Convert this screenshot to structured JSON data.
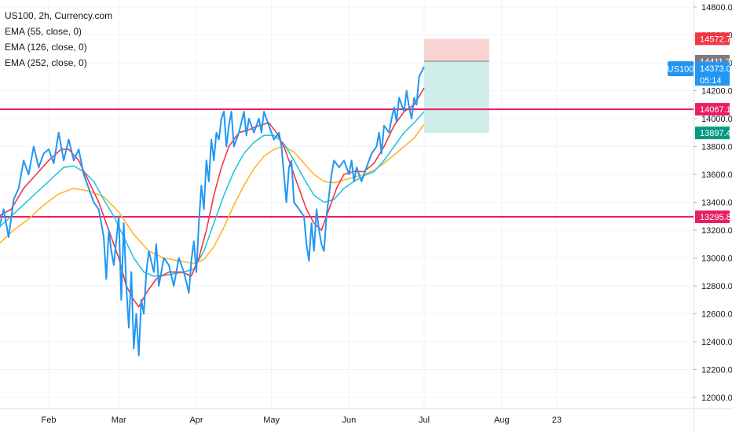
{
  "legend": {
    "title": "US100, 2h, Currency.com",
    "ema_55": "EMA (55, close, 0)",
    "ema_126": "EMA (126, close, 0)",
    "ema_252": "EMA (252, close, 0)"
  },
  "symbol_tag": "US100",
  "countdown": "05:14",
  "colors": {
    "price": "#2196f3",
    "ema_55": "#f23645",
    "ema_126": "#26c6da",
    "ema_252": "#ffb52e",
    "hline": "#e91e63",
    "stop_zone": "#f7c9c9",
    "target_zone": "#c3e8e4",
    "entry_tag": "#787b86",
    "stop_tag": "#f23645",
    "target_tag": "#089981",
    "last_tag": "#2196f3",
    "grid": "#f0f3fa"
  },
  "chart_data": {
    "type": "line",
    "ylim": [
      11900,
      14900
    ],
    "yticks": [
      12000,
      12200,
      12400,
      12600,
      12800,
      13000,
      13200,
      13400,
      13600,
      13800,
      14000,
      14200,
      14400,
      14600,
      14800
    ],
    "ytick_labels": [
      "12000.0",
      "12200.0",
      "12400.0",
      "12600.0",
      "12800.0",
      "13000.0",
      "13200.0",
      "13400.0",
      "13600.0",
      "13800.0",
      "14000.0",
      "14200.0",
      "14400.0",
      "14600.0",
      "14800.0"
    ],
    "x_domain": [
      -43,
      236
    ],
    "xticks": [
      {
        "label": "Feb",
        "day": 0
      },
      {
        "label": "Mar",
        "day": 28
      },
      {
        "label": "Apr",
        "day": 59
      },
      {
        "label": "May",
        "day": 89
      },
      {
        "label": "Jun",
        "day": 120
      },
      {
        "label": "Jul",
        "day": 150
      },
      {
        "label": "Aug",
        "day": 181
      },
      {
        "label": "23",
        "day": 203
      }
    ],
    "series": [
      {
        "key": "price",
        "points": [
          [
            -43,
            12950
          ],
          [
            -39,
            12900
          ],
          [
            -35,
            12980
          ],
          [
            -30,
            13230
          ],
          [
            -28,
            13480
          ],
          [
            -26,
            13380
          ],
          [
            -24,
            13450
          ],
          [
            -22,
            12900
          ],
          [
            -20,
            13200
          ],
          [
            -18,
            13350
          ],
          [
            -16,
            13150
          ],
          [
            -14,
            13420
          ],
          [
            -12,
            13500
          ],
          [
            -10,
            13700
          ],
          [
            -8,
            13600
          ],
          [
            -6,
            13800
          ],
          [
            -4,
            13650
          ],
          [
            -2,
            13750
          ],
          [
            0,
            13780
          ],
          [
            2,
            13680
          ],
          [
            4,
            13900
          ],
          [
            6,
            13700
          ],
          [
            8,
            13850
          ],
          [
            10,
            13700
          ],
          [
            12,
            13780
          ],
          [
            14,
            13600
          ],
          [
            16,
            13500
          ],
          [
            18,
            13400
          ],
          [
            20,
            13350
          ],
          [
            22,
            13150
          ],
          [
            23,
            12850
          ],
          [
            24,
            13200
          ],
          [
            25,
            13050
          ],
          [
            26,
            12950
          ],
          [
            28,
            13300
          ],
          [
            29,
            12700
          ],
          [
            30,
            13250
          ],
          [
            31,
            12800
          ],
          [
            32,
            12500
          ],
          [
            33,
            12900
          ],
          [
            34,
            12350
          ],
          [
            35,
            12600
          ],
          [
            36,
            12300
          ],
          [
            37,
            12700
          ],
          [
            38,
            12600
          ],
          [
            39,
            12900
          ],
          [
            40,
            13050
          ],
          [
            42,
            12900
          ],
          [
            43,
            13100
          ],
          [
            44,
            12800
          ],
          [
            46,
            13000
          ],
          [
            48,
            12950
          ],
          [
            50,
            12800
          ],
          [
            52,
            13000
          ],
          [
            54,
            12900
          ],
          [
            56,
            12750
          ],
          [
            57,
            12980
          ],
          [
            58,
            13120
          ],
          [
            59,
            12900
          ],
          [
            60,
            13250
          ],
          [
            61,
            13520
          ],
          [
            62,
            13350
          ],
          [
            63,
            13700
          ],
          [
            64,
            13550
          ],
          [
            65,
            13850
          ],
          [
            66,
            13700
          ],
          [
            67,
            13900
          ],
          [
            68,
            13850
          ],
          [
            69,
            14000
          ],
          [
            70,
            14050
          ],
          [
            71,
            13800
          ],
          [
            72,
            13950
          ],
          [
            73,
            14050
          ],
          [
            74,
            13800
          ],
          [
            76,
            13900
          ],
          [
            78,
            14050
          ],
          [
            79,
            13880
          ],
          [
            80,
            14000
          ],
          [
            82,
            13900
          ],
          [
            84,
            14000
          ],
          [
            85,
            13900
          ],
          [
            86,
            14050
          ],
          [
            88,
            13950
          ],
          [
            90,
            13850
          ],
          [
            92,
            13900
          ],
          [
            93,
            13800
          ],
          [
            94,
            13600
          ],
          [
            95,
            13400
          ],
          [
            96,
            13650
          ],
          [
            97,
            13700
          ],
          [
            98,
            13400
          ],
          [
            100,
            13350
          ],
          [
            102,
            13300
          ],
          [
            103,
            13100
          ],
          [
            104,
            12980
          ],
          [
            105,
            13250
          ],
          [
            106,
            13050
          ],
          [
            107,
            13350
          ],
          [
            108,
            13200
          ],
          [
            109,
            13100
          ],
          [
            110,
            13050
          ],
          [
            111,
            13300
          ],
          [
            112,
            13450
          ],
          [
            113,
            13600
          ],
          [
            114,
            13700
          ],
          [
            116,
            13650
          ],
          [
            118,
            13700
          ],
          [
            120,
            13600
          ],
          [
            121,
            13700
          ],
          [
            122,
            13550
          ],
          [
            123,
            13650
          ],
          [
            125,
            13550
          ],
          [
            127,
            13650
          ],
          [
            129,
            13750
          ],
          [
            131,
            13800
          ],
          [
            132,
            13900
          ],
          [
            133,
            13750
          ],
          [
            134,
            13950
          ],
          [
            136,
            13900
          ],
          [
            137,
            14000
          ],
          [
            138,
            14080
          ],
          [
            139,
            13980
          ],
          [
            140,
            14150
          ],
          [
            141,
            14100
          ],
          [
            142,
            14050
          ],
          [
            143,
            14200
          ],
          [
            144,
            14080
          ],
          [
            145,
            14000
          ],
          [
            146,
            14150
          ],
          [
            147,
            14100
          ],
          [
            148,
            14300
          ],
          [
            150,
            14373
          ]
        ]
      },
      {
        "key": "ema_55",
        "points": [
          [
            -43,
            12920
          ],
          [
            -36,
            12950
          ],
          [
            -30,
            13050
          ],
          [
            -25,
            13250
          ],
          [
            -20,
            13300
          ],
          [
            -15,
            13350
          ],
          [
            -10,
            13500
          ],
          [
            -5,
            13600
          ],
          [
            0,
            13700
          ],
          [
            5,
            13780
          ],
          [
            8,
            13780
          ],
          [
            12,
            13700
          ],
          [
            16,
            13550
          ],
          [
            20,
            13400
          ],
          [
            24,
            13200
          ],
          [
            28,
            13000
          ],
          [
            31,
            12800
          ],
          [
            34,
            12700
          ],
          [
            36,
            12650
          ],
          [
            39,
            12750
          ],
          [
            43,
            12850
          ],
          [
            48,
            12900
          ],
          [
            53,
            12900
          ],
          [
            57,
            12870
          ],
          [
            60,
            13000
          ],
          [
            63,
            13200
          ],
          [
            66,
            13450
          ],
          [
            69,
            13650
          ],
          [
            72,
            13800
          ],
          [
            76,
            13900
          ],
          [
            80,
            13920
          ],
          [
            84,
            13950
          ],
          [
            88,
            13970
          ],
          [
            91,
            13900
          ],
          [
            94,
            13800
          ],
          [
            97,
            13650
          ],
          [
            100,
            13500
          ],
          [
            103,
            13350
          ],
          [
            106,
            13250
          ],
          [
            109,
            13200
          ],
          [
            112,
            13350
          ],
          [
            115,
            13500
          ],
          [
            118,
            13600
          ],
          [
            122,
            13620
          ],
          [
            126,
            13620
          ],
          [
            130,
            13680
          ],
          [
            134,
            13800
          ],
          [
            138,
            13950
          ],
          [
            142,
            14050
          ],
          [
            146,
            14100
          ],
          [
            150,
            14220
          ]
        ]
      },
      {
        "key": "ema_126",
        "points": [
          [
            -43,
            12880
          ],
          [
            -36,
            12900
          ],
          [
            -30,
            13000
          ],
          [
            -24,
            13150
          ],
          [
            -18,
            13250
          ],
          [
            -12,
            13350
          ],
          [
            -6,
            13450
          ],
          [
            0,
            13550
          ],
          [
            6,
            13650
          ],
          [
            10,
            13660
          ],
          [
            14,
            13620
          ],
          [
            18,
            13550
          ],
          [
            22,
            13420
          ],
          [
            26,
            13300
          ],
          [
            30,
            13150
          ],
          [
            34,
            13000
          ],
          [
            38,
            12900
          ],
          [
            42,
            12870
          ],
          [
            48,
            12880
          ],
          [
            54,
            12900
          ],
          [
            58,
            12920
          ],
          [
            62,
            13050
          ],
          [
            66,
            13250
          ],
          [
            70,
            13450
          ],
          [
            74,
            13620
          ],
          [
            78,
            13750
          ],
          [
            82,
            13830
          ],
          [
            86,
            13880
          ],
          [
            90,
            13880
          ],
          [
            94,
            13820
          ],
          [
            98,
            13700
          ],
          [
            102,
            13570
          ],
          [
            106,
            13450
          ],
          [
            110,
            13400
          ],
          [
            114,
            13420
          ],
          [
            118,
            13500
          ],
          [
            122,
            13550
          ],
          [
            126,
            13590
          ],
          [
            130,
            13620
          ],
          [
            134,
            13700
          ],
          [
            138,
            13800
          ],
          [
            142,
            13900
          ],
          [
            146,
            13970
          ],
          [
            150,
            14050
          ]
        ]
      },
      {
        "key": "ema_252",
        "points": [
          [
            -43,
            12720
          ],
          [
            -38,
            12780
          ],
          [
            -32,
            12860
          ],
          [
            -26,
            13000
          ],
          [
            -20,
            13100
          ],
          [
            -14,
            13200
          ],
          [
            -8,
            13280
          ],
          [
            -2,
            13380
          ],
          [
            4,
            13460
          ],
          [
            10,
            13500
          ],
          [
            16,
            13480
          ],
          [
            22,
            13440
          ],
          [
            28,
            13330
          ],
          [
            34,
            13170
          ],
          [
            40,
            13050
          ],
          [
            46,
            13000
          ],
          [
            52,
            12980
          ],
          [
            58,
            12960
          ],
          [
            62,
            12990
          ],
          [
            66,
            13080
          ],
          [
            70,
            13220
          ],
          [
            74,
            13380
          ],
          [
            78,
            13520
          ],
          [
            82,
            13640
          ],
          [
            86,
            13730
          ],
          [
            90,
            13780
          ],
          [
            94,
            13800
          ],
          [
            98,
            13760
          ],
          [
            102,
            13680
          ],
          [
            106,
            13600
          ],
          [
            110,
            13550
          ],
          [
            114,
            13540
          ],
          [
            118,
            13560
          ],
          [
            122,
            13580
          ],
          [
            126,
            13600
          ],
          [
            130,
            13630
          ],
          [
            134,
            13680
          ],
          [
            138,
            13740
          ],
          [
            142,
            13800
          ],
          [
            146,
            13860
          ],
          [
            150,
            13960
          ]
        ]
      }
    ],
    "horizontal_lines": [
      {
        "y": 14067.1,
        "label": "14067.1"
      },
      {
        "y": 13295.8,
        "label": "13295.8"
      }
    ],
    "position_tool": {
      "x_start": 150,
      "x_end": 176,
      "stop": 14572.7,
      "entry": 14411.2,
      "target": 13897.4
    },
    "price_tags": {
      "stop": "14572.7",
      "entry": "14411.2",
      "last": "14373.0",
      "target": "13897.4"
    }
  }
}
